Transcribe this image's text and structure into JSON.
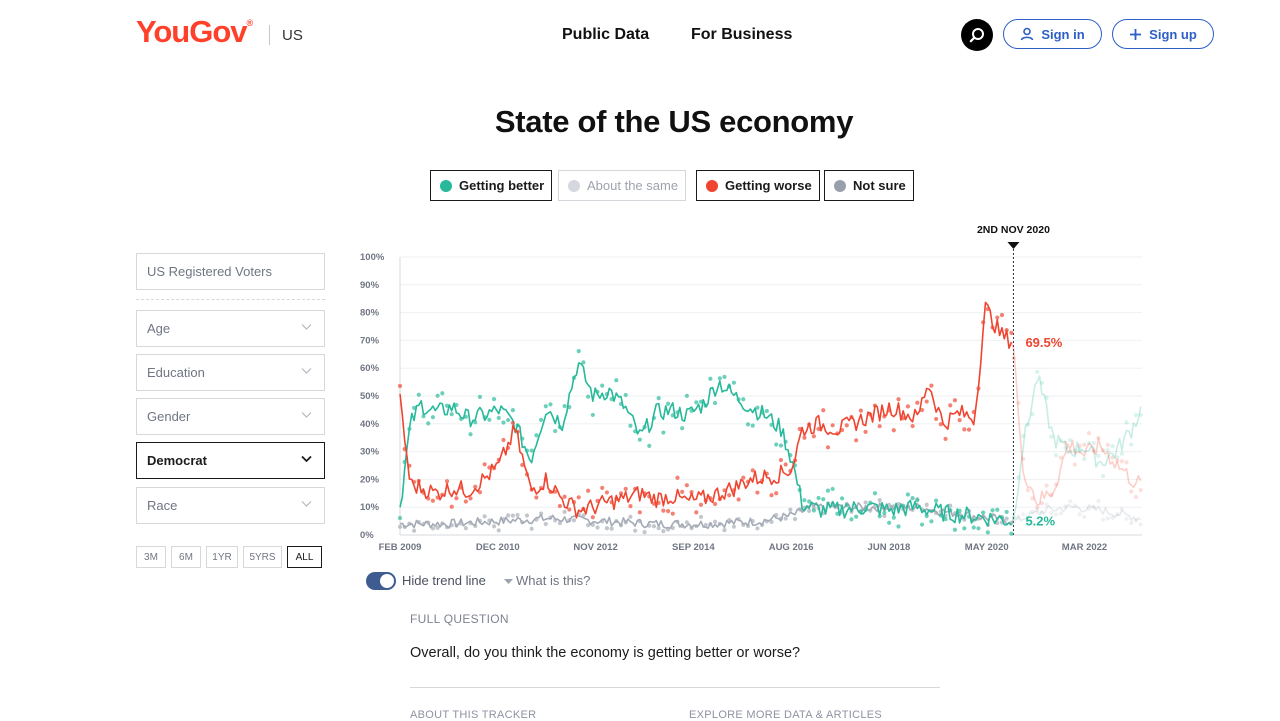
{
  "header": {
    "logo": "YouGov",
    "logo_mark": "®",
    "region": "US",
    "nav": [
      "Public Data",
      "For Business"
    ],
    "sign_in": "Sign in",
    "sign_up": "Sign up"
  },
  "page_title": "State of the US economy",
  "legend": [
    {
      "label": "Getting better",
      "color": "#26b99a",
      "active": true
    },
    {
      "label": "About the same",
      "color": "#d5d8df",
      "active": false
    },
    {
      "label": "Getting worse",
      "color": "#ef4530",
      "active": true
    },
    {
      "label": "Not sure",
      "color": "#9aa0ab",
      "active": true
    }
  ],
  "filters": {
    "population": "US Registered Voters",
    "dropdowns": [
      "Age",
      "Education",
      "Gender",
      "Democrat",
      "Race"
    ],
    "selected_dropdown": "Democrat",
    "ranges": [
      "3M",
      "6M",
      "1YR",
      "5YRS",
      "ALL"
    ],
    "selected_range": "ALL"
  },
  "chart_data": {
    "type": "line",
    "ylim": [
      0,
      100
    ],
    "y_ticks": [
      "0%",
      "10%",
      "20%",
      "30%",
      "40%",
      "50%",
      "60%",
      "70%",
      "80%",
      "90%",
      "100%"
    ],
    "x_ticks": [
      "FEB 2009",
      "DEC 2010",
      "NOV 2012",
      "SEP 2014",
      "AUG 2016",
      "JUN 2018",
      "MAY 2020",
      "MAR 2022"
    ],
    "xlim": [
      2009.1,
      2023.3
    ],
    "marker": {
      "label": "2ND NOV 2020",
      "x": 2020.84
    },
    "end_labels": [
      {
        "series": "Getting worse",
        "value": 69.5,
        "text": "69.5%"
      },
      {
        "series": "Getting better",
        "value": 5.2,
        "text": "5.2%"
      }
    ],
    "series": [
      {
        "name": "Getting better",
        "color": "#26b99a",
        "x": [
          2009.1,
          2009.3,
          2009.5,
          2009.8,
          2010.1,
          2010.4,
          2010.7,
          2011.0,
          2011.3,
          2011.6,
          2011.9,
          2012.2,
          2012.5,
          2012.8,
          2013.1,
          2013.4,
          2013.7,
          2014.0,
          2014.3,
          2014.6,
          2014.9,
          2015.2,
          2015.5,
          2015.8,
          2016.1,
          2016.4,
          2016.6,
          2016.8,
          2017.1,
          2017.5,
          2018.0,
          2018.5,
          2019.0,
          2019.5,
          2020.0,
          2020.4,
          2020.84,
          2021.0,
          2021.3,
          2021.6,
          2021.9,
          2022.2,
          2022.5,
          2022.8,
          2023.1,
          2023.3
        ],
        "y": [
          10,
          40,
          47,
          44,
          46,
          42,
          43,
          45,
          40,
          27,
          46,
          40,
          62,
          50,
          52,
          46,
          35,
          44,
          45,
          43,
          47,
          55,
          50,
          46,
          43,
          38,
          27,
          11,
          9,
          9,
          10,
          9,
          10,
          8,
          7,
          6,
          5,
          30,
          57,
          35,
          30,
          32,
          26,
          30,
          38,
          46
        ]
      },
      {
        "name": "Getting worse",
        "color": "#ef4530",
        "x": [
          2009.1,
          2009.3,
          2009.5,
          2009.8,
          2010.1,
          2010.4,
          2010.7,
          2011.0,
          2011.3,
          2011.6,
          2011.9,
          2012.2,
          2012.5,
          2012.8,
          2013.1,
          2013.4,
          2013.7,
          2014.0,
          2014.3,
          2014.6,
          2014.9,
          2015.2,
          2015.5,
          2015.8,
          2016.1,
          2016.4,
          2016.6,
          2016.8,
          2017.1,
          2017.5,
          2018.0,
          2018.5,
          2019.0,
          2019.2,
          2019.5,
          2019.8,
          2020.1,
          2020.3,
          2020.6,
          2020.84,
          2021.0,
          2021.3,
          2021.6,
          2021.9,
          2022.2,
          2022.5,
          2022.8,
          2023.1,
          2023.3
        ],
        "y": [
          48,
          18,
          17,
          15,
          17,
          16,
          20,
          25,
          38,
          16,
          20,
          13,
          9,
          10,
          12,
          13,
          15,
          13,
          14,
          12,
          13,
          15,
          17,
          20,
          21,
          22,
          24,
          38,
          40,
          38,
          42,
          46,
          42,
          55,
          40,
          44,
          42,
          82,
          72,
          69.5,
          25,
          12,
          16,
          33,
          29,
          32,
          26,
          20,
          18
        ]
      },
      {
        "name": "Not sure",
        "color": "#a5abb6",
        "x": [
          2009.1,
          2010.0,
          2011.0,
          2012.0,
          2013.0,
          2014.0,
          2015.0,
          2016.0,
          2016.6,
          2017.0,
          2018.0,
          2019.0,
          2020.0,
          2020.84,
          2021.5,
          2022.0,
          2022.5,
          2023.0,
          2023.3
        ],
        "y": [
          4,
          4,
          5,
          6,
          5,
          4,
          4,
          5,
          7,
          10,
          10,
          10,
          7,
          5,
          9,
          10,
          9,
          7,
          6
        ]
      }
    ]
  },
  "controls": {
    "toggle_label": "Hide trend line",
    "what_is_this": "What is this?"
  },
  "question": {
    "heading": "FULL QUESTION",
    "text": "Overall, do you think the economy is getting better or worse?"
  },
  "footer_links": [
    "ABOUT THIS TRACKER",
    "EXPLORE MORE DATA & ARTICLES"
  ]
}
